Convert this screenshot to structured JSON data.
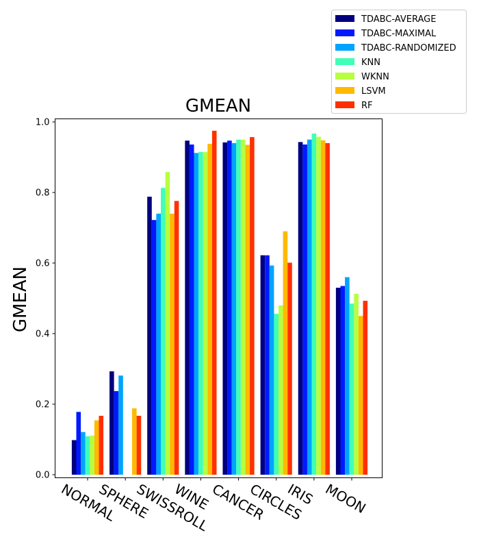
{
  "chart_data": {
    "type": "bar",
    "title": "GMEAN",
    "ylabel": "GMEAN",
    "xlabel": "",
    "ylim": [
      -0.01,
      1.01
    ],
    "yticks": [
      "0.0",
      "0.2",
      "0.4",
      "0.6",
      "0.8",
      "1.0"
    ],
    "legend_position": "top-right",
    "grid": false,
    "categories": [
      "NORMAL",
      "SPHERE",
      "SWISSROLL",
      "WINE",
      "CANCER",
      "CIRCLES",
      "IRIS",
      "MOON"
    ],
    "series": [
      {
        "name": "TDABC-AVERAGE",
        "color": "#000080",
        "values": [
          0.098,
          0.293,
          0.788,
          0.947,
          0.942,
          0.622,
          0.943,
          0.53
        ]
      },
      {
        "name": "TDABC-MAXIMAL",
        "color": "#0019ff",
        "values": [
          0.178,
          0.237,
          0.722,
          0.936,
          0.947,
          0.622,
          0.936,
          0.535
        ]
      },
      {
        "name": "TDABC-RANDOMIZED",
        "color": "#00a4ff",
        "values": [
          0.121,
          0.281,
          0.74,
          0.912,
          0.94,
          0.593,
          0.95,
          0.56
        ]
      },
      {
        "name": "KNN",
        "color": "#40ffb7",
        "values": [
          0.109,
          0.0,
          0.813,
          0.915,
          0.95,
          0.456,
          0.967,
          0.485
        ]
      },
      {
        "name": "WKNN",
        "color": "#b7ff40",
        "values": [
          0.111,
          0.0,
          0.858,
          0.915,
          0.95,
          0.48,
          0.958,
          0.513
        ]
      },
      {
        "name": "LSVM",
        "color": "#ffb900",
        "values": [
          0.154,
          0.188,
          0.74,
          0.938,
          0.935,
          0.69,
          0.948,
          0.45
        ]
      },
      {
        "name": "RF",
        "color": "#ff3000",
        "values": [
          0.167,
          0.167,
          0.776,
          0.975,
          0.957,
          0.601,
          0.94,
          0.493
        ]
      }
    ]
  }
}
